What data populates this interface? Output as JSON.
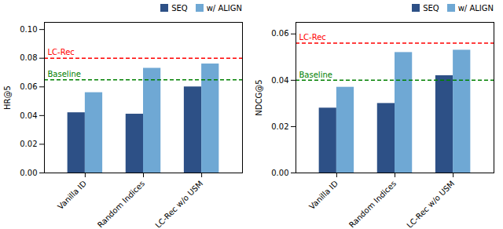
{
  "chart_data": [
    {
      "type": "bar",
      "categories": [
        "Vanilla ID",
        "Random Indices",
        "LC-Rec w/o USM"
      ],
      "series": [
        {
          "name": "SEQ",
          "color": "#2d5086",
          "values": [
            0.042,
            0.041,
            0.06
          ]
        },
        {
          "name": "w/ ALIGN",
          "color": "#6fa8d4",
          "values": [
            0.056,
            0.073,
            0.076
          ]
        }
      ],
      "lines": [
        {
          "name": "LC-Rec",
          "value": 0.08,
          "color": "red",
          "line_style": "dashed"
        },
        {
          "name": "Baseline",
          "value": 0.065,
          "color": "green",
          "line_style": "dashed"
        }
      ],
      "ylabel": "HR@5",
      "ylim": [
        0,
        0.105
      ],
      "yticks": [
        {
          "value": 0,
          "label": "0.00"
        },
        0.02,
        0.04,
        0.06,
        0.08,
        {
          "value": 0.1,
          "label": "0.10"
        }
      ],
      "legend": "upper right",
      "grid": false
    },
    {
      "type": "bar",
      "categories": [
        "Vanilla ID",
        "Random Indices",
        "LC-Rec w/o USM"
      ],
      "series": [
        {
          "name": "SEQ",
          "color": "#2d5086",
          "values": [
            0.028,
            0.03,
            0.042
          ]
        },
        {
          "name": "w/ ALIGN",
          "color": "#6fa8d4",
          "values": [
            0.037,
            0.052,
            0.053
          ]
        }
      ],
      "lines": [
        {
          "name": "LC-Rec",
          "value": 0.056,
          "color": "red",
          "line_style": "dashed"
        },
        {
          "name": "Baseline",
          "value": 0.04,
          "color": "green",
          "line_style": "dashed"
        }
      ],
      "ylabel": "NDCG@5",
      "ylim": [
        0,
        0.065
      ],
      "yticks": [
        {
          "value": 0,
          "label": "0.00"
        },
        0.02,
        0.04,
        0.06
      ],
      "legend": "upper right",
      "grid": false
    }
  ]
}
